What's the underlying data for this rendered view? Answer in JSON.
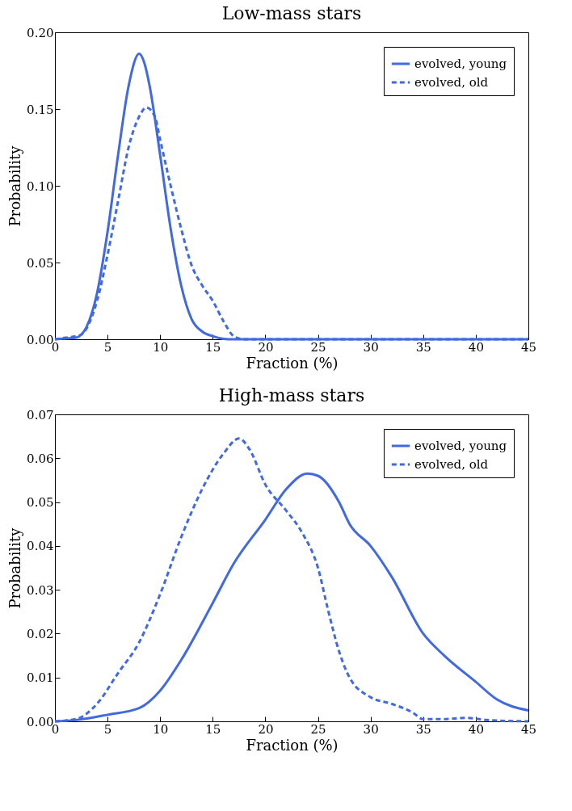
{
  "chart_data": [
    {
      "type": "line",
      "title": "Low-mass stars",
      "xlabel": "Fraction (%)",
      "ylabel": "Probability",
      "xlim": [
        0,
        45
      ],
      "ylim": [
        0,
        0.2
      ],
      "xticks": [
        0,
        5,
        10,
        15,
        20,
        25,
        30,
        35,
        40,
        45
      ],
      "yticks": [
        {
          "value": 0,
          "label": "0.00"
        },
        {
          "value": 0.05,
          "label": "0.05"
        },
        {
          "value": 0.1,
          "label": "0.10"
        },
        {
          "value": 0.15,
          "label": "0.15"
        },
        {
          "value": 0.2,
          "label": "0.20"
        }
      ],
      "grid": false,
      "legend": "top right",
      "series": [
        {
          "name": "evolved, young",
          "color": "#4169e1",
          "line_style": "solid",
          "x": [
            0,
            1,
            2,
            2.5,
            3,
            4,
            5,
            6,
            7,
            8,
            8.5,
            9,
            10,
            11,
            12,
            13,
            14,
            15,
            16,
            17,
            45
          ],
          "values": [
            0,
            0.0005,
            0.001,
            0.003,
            0.008,
            0.03,
            0.07,
            0.12,
            0.165,
            0.186,
            0.18,
            0.165,
            0.12,
            0.072,
            0.035,
            0.013,
            0.005,
            0.002,
            0.0003,
            0,
            0
          ]
        },
        {
          "name": "evolved, old",
          "color": "#4169e1",
          "line_style": "dashed",
          "x": [
            0,
            1,
            2,
            2.5,
            3,
            4,
            5,
            6,
            7,
            8,
            8.7,
            9.5,
            10,
            11,
            12,
            13,
            14,
            15,
            16,
            17,
            18,
            45
          ],
          "values": [
            0,
            0.001,
            0.002,
            0.003,
            0.007,
            0.025,
            0.055,
            0.09,
            0.125,
            0.145,
            0.151,
            0.145,
            0.13,
            0.1,
            0.072,
            0.048,
            0.035,
            0.025,
            0.012,
            0.002,
            0,
            0
          ]
        }
      ]
    },
    {
      "type": "line",
      "title": "High-mass stars",
      "xlabel": "Fraction (%)",
      "ylabel": "Probability",
      "xlim": [
        0,
        45
      ],
      "ylim": [
        0,
        0.07
      ],
      "xticks": [
        0,
        5,
        10,
        15,
        20,
        25,
        30,
        35,
        40,
        45
      ],
      "yticks": [
        {
          "value": 0,
          "label": "0.00"
        },
        {
          "value": 0.01,
          "label": "0.01"
        },
        {
          "value": 0.02,
          "label": "0.02"
        },
        {
          "value": 0.03,
          "label": "0.03"
        },
        {
          "value": 0.04,
          "label": "0.04"
        },
        {
          "value": 0.05,
          "label": "0.05"
        },
        {
          "value": 0.06,
          "label": "0.06"
        },
        {
          "value": 0.07,
          "label": "0.07"
        }
      ],
      "grid": false,
      "legend": "top right",
      "series": [
        {
          "name": "evolved, young",
          "color": "#4169e1",
          "line_style": "solid",
          "x": [
            0,
            2,
            5,
            8,
            10,
            12,
            15,
            17,
            20,
            22,
            24,
            25,
            27,
            28,
            30,
            32,
            35,
            37,
            40,
            42,
            45
          ],
          "values": [
            0,
            0.0003,
            0.0015,
            0.003,
            0.007,
            0.014,
            0.027,
            0.036,
            0.046,
            0.053,
            0.0565,
            0.056,
            0.05,
            0.045,
            0.04,
            0.033,
            0.02,
            0.015,
            0.009,
            0.005,
            0.0025
          ]
        },
        {
          "name": "evolved, old",
          "color": "#4169e1",
          "line_style": "dashed",
          "x": [
            0,
            2,
            4,
            6,
            8,
            10,
            12,
            14,
            16,
            17.5,
            18.5,
            20,
            22,
            23.5,
            25,
            26,
            27,
            28,
            30,
            32,
            34,
            35,
            37,
            39,
            41,
            45
          ],
          "values": [
            0,
            0.0005,
            0.004,
            0.011,
            0.018,
            0.029,
            0.042,
            0.053,
            0.061,
            0.0645,
            0.062,
            0.054,
            0.048,
            0.043,
            0.035,
            0.025,
            0.016,
            0.01,
            0.0055,
            0.004,
            0.002,
            0.0005,
            0.0005,
            0.0008,
            0.0003,
            0
          ]
        }
      ]
    }
  ]
}
